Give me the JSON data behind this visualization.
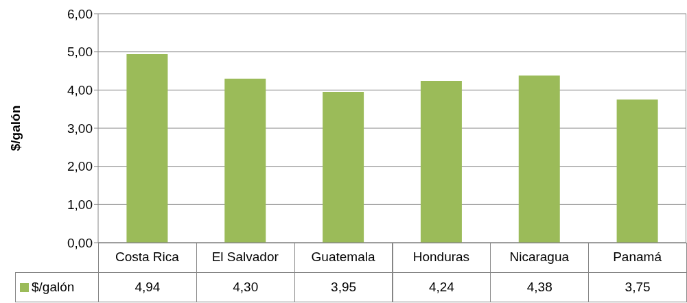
{
  "chart_data": {
    "type": "bar",
    "ylabel": "$/galón",
    "categories": [
      "Costa Rica",
      "El Salvador",
      "Guatemala",
      "Honduras",
      "Nicaragua",
      "Panamá"
    ],
    "series": [
      {
        "name": "$/galón",
        "color": "#9bbb59",
        "values": [
          4.94,
          4.3,
          3.95,
          4.24,
          4.38,
          3.75
        ],
        "value_labels": [
          "4,94",
          "4,30",
          "3,95",
          "4,24",
          "4,38",
          "3,75"
        ]
      }
    ],
    "ylim": [
      0,
      6
    ],
    "yticks": [
      {
        "value": 0,
        "label": "0,00"
      },
      {
        "value": 1,
        "label": "1,00"
      },
      {
        "value": 2,
        "label": "2,00"
      },
      {
        "value": 3,
        "label": "3,00"
      },
      {
        "value": 4,
        "label": "4,00"
      },
      {
        "value": 5,
        "label": "5,00"
      },
      {
        "value": 6,
        "label": "6,00"
      }
    ],
    "grid": "y",
    "legend": "bottom left"
  }
}
